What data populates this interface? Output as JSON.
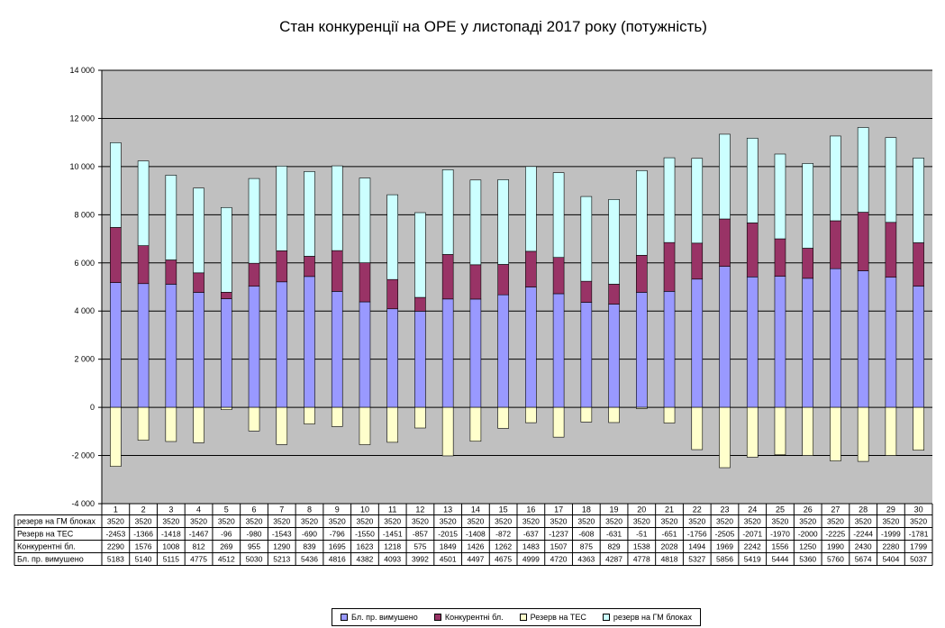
{
  "chart_data": {
    "type": "bar",
    "title": "Стан конкуренції на ОРЕ  у листопаді 2017 року (потужність)",
    "categories": [
      "1",
      "2",
      "3",
      "4",
      "5",
      "6",
      "7",
      "8",
      "9",
      "10",
      "11",
      "12",
      "13",
      "14",
      "15",
      "16",
      "17",
      "18",
      "19",
      "20",
      "21",
      "22",
      "23",
      "24",
      "25",
      "26",
      "27",
      "28",
      "29",
      "30"
    ],
    "ylim": [
      -4000,
      14000
    ],
    "yticks": [
      "-4 000",
      "-2 000",
      "0",
      "2 000",
      "4 000",
      "6 000",
      "8 000",
      "10 000",
      "12 000",
      "14 000"
    ],
    "grid": true,
    "legend_position": "bottom",
    "series": [
      {
        "name": "Бл. пр. вимушено",
        "color": "#9999ff",
        "values": [
          5183,
          5140,
          5115,
          4775,
          4512,
          5030,
          5213,
          5436,
          4816,
          4382,
          4093,
          3992,
          4501,
          4497,
          4675,
          4999,
          4720,
          4363,
          4287,
          4778,
          4818,
          5327,
          5856,
          5419,
          5444,
          5360,
          5760,
          5674,
          5404,
          5037
        ]
      },
      {
        "name": "Конкурентні бл.",
        "color": "#993366",
        "values": [
          2290,
          1576,
          1008,
          812,
          269,
          955,
          1290,
          839,
          1695,
          1623,
          1218,
          575,
          1849,
          1426,
          1262,
          1483,
          1507,
          875,
          829,
          1538,
          2028,
          1494,
          1969,
          2242,
          1556,
          1250,
          1990,
          2430,
          2280,
          1799
        ]
      },
      {
        "name": "Резерв на ТЕС",
        "color": "#ffffcc",
        "values": [
          -2453,
          -1366,
          -1418,
          -1467,
          -96,
          -980,
          -1543,
          -690,
          -796,
          -1550,
          -1451,
          -857,
          -2015,
          -1408,
          -872,
          -637,
          -1237,
          -608,
          -631,
          -51,
          -651,
          -1756,
          -2505,
          -2071,
          -1970,
          -2000,
          -2225,
          -2244,
          -1999,
          -1781
        ]
      },
      {
        "name": "резерв на ГМ блоках",
        "color": "#ccffff",
        "values": [
          3520,
          3520,
          3520,
          3520,
          3520,
          3520,
          3520,
          3520,
          3520,
          3520,
          3520,
          3520,
          3520,
          3520,
          3520,
          3520,
          3520,
          3520,
          3520,
          3520,
          3520,
          3520,
          3520,
          3520,
          3520,
          3520,
          3520,
          3520,
          3520,
          3520
        ]
      }
    ],
    "table_rows": [
      {
        "label": "резерв на ГМ блоках",
        "series": 3
      },
      {
        "label": "Резерв на ТЕС",
        "series": 2
      },
      {
        "label": "Конкурентні бл.",
        "series": 1
      },
      {
        "label": "Бл. пр. вимушено",
        "series": 0
      }
    ],
    "colors": {
      "plot_bg": "#c0c0c0",
      "grid": "#000000",
      "page_bg": "#ffffff"
    }
  }
}
